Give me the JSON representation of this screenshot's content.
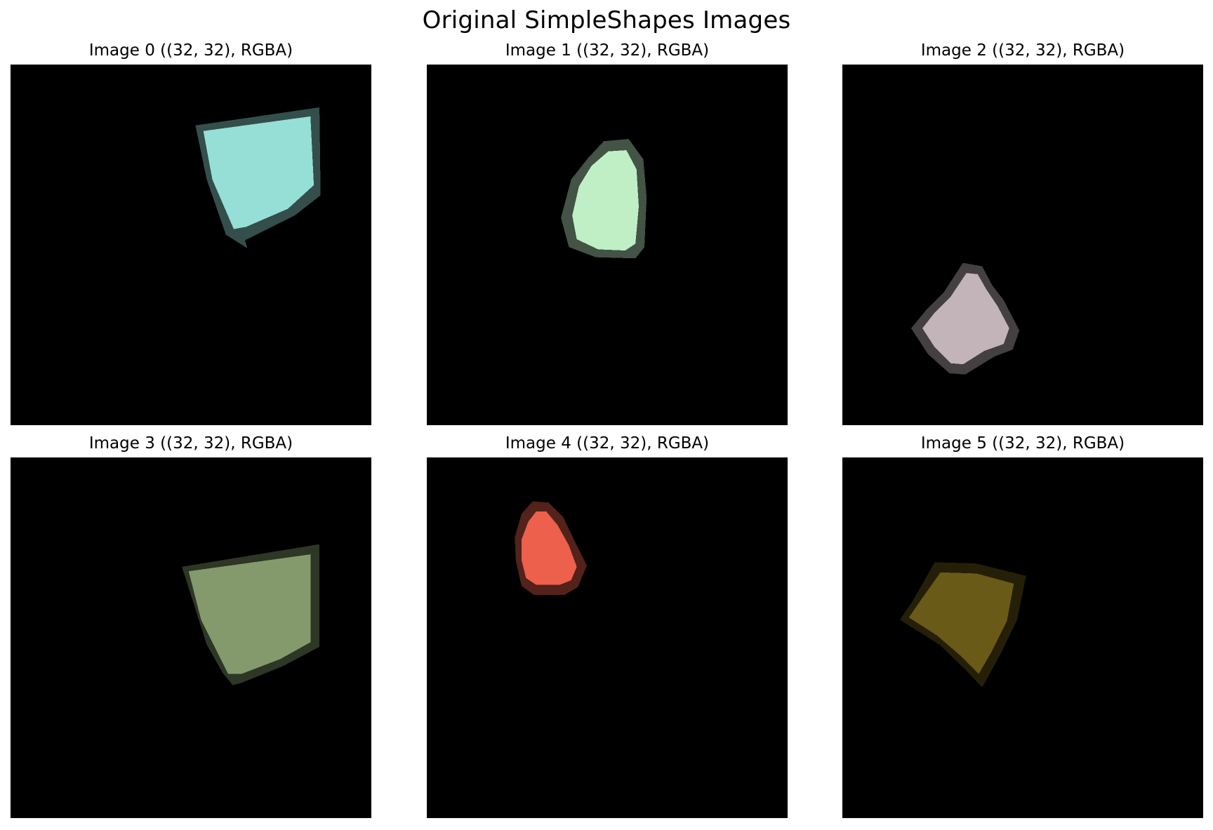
{
  "figure": {
    "title": "Original SimpleShapes Images"
  },
  "images": [
    {
      "title": "Image 0 ((32, 32), RGBA)",
      "shape": "triangle",
      "color": "#96dfd6"
    },
    {
      "title": "Image 1 ((32, 32), RGBA)",
      "shape": "egg",
      "color": "#c0efc6"
    },
    {
      "title": "Image 2 ((32, 32), RGBA)",
      "shape": "diamond",
      "color": "#c2b4b8"
    },
    {
      "title": "Image 3 ((32, 32), RGBA)",
      "shape": "triangle",
      "color": "#849a6c"
    },
    {
      "title": "Image 4 ((32, 32), RGBA)",
      "shape": "egg",
      "color": "#ec604c"
    },
    {
      "title": "Image 5 ((32, 32), RGBA)",
      "shape": "triangle",
      "color": "#6a5a18"
    }
  ]
}
